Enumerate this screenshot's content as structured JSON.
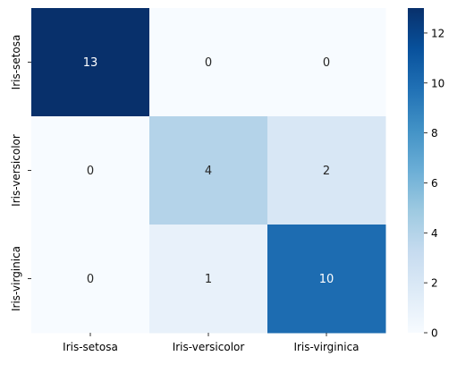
{
  "chart_data": {
    "type": "heatmap",
    "title": "",
    "xlabel": "",
    "ylabel": "",
    "x_categories": [
      "Iris-setosa",
      "Iris-versicolor",
      "Iris-virginica"
    ],
    "y_categories": [
      "Iris-setosa",
      "Iris-versicolor",
      "Iris-virginica"
    ],
    "values": [
      [
        13,
        0,
        0
      ],
      [
        0,
        4,
        2
      ],
      [
        0,
        1,
        10
      ]
    ],
    "colormap": "Blues",
    "color_range": [
      0,
      13
    ],
    "colorbar_ticks": [
      0,
      2,
      4,
      6,
      8,
      10,
      12
    ],
    "annotations": true
  }
}
